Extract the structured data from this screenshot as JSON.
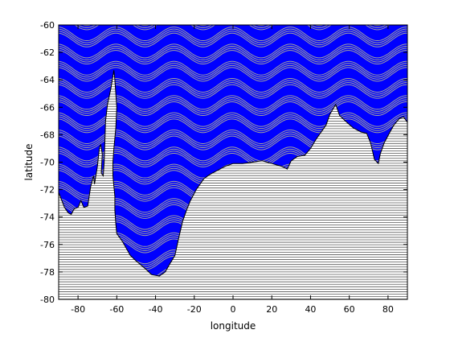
{
  "chart_data": {
    "type": "map",
    "title": "",
    "xlabel": "longitude",
    "ylabel": "latitude",
    "xlim": [
      -90,
      90
    ],
    "ylim": [
      -80,
      -60
    ],
    "xticks": [
      -80,
      -60,
      -40,
      -20,
      0,
      20,
      40,
      60,
      80
    ],
    "yticks": [
      -80,
      -78,
      -76,
      -74,
      -72,
      -70,
      -68,
      -66,
      -64,
      -62,
      -60
    ],
    "grid": false,
    "colors": {
      "ocean": "#0000ff",
      "land": "#ffffff",
      "stripe": "#a0a0a0",
      "coastline": "#000000"
    },
    "wave": {
      "period_deg_lon": 30,
      "amplitude_deg_lat": 0.5,
      "band_spacing_deg_lat": 1.25,
      "band_thickness_deg_lat": 0.45,
      "lines_per_band": 4
    },
    "land_stripe_spacing_deg_lat": 0.18,
    "coastline": [
      [
        -90,
        -72.2
      ],
      [
        -87,
        -73.3
      ],
      [
        -85,
        -73.7
      ],
      [
        -83.5,
        -73.8
      ],
      [
        -82,
        -73.4
      ],
      [
        -80,
        -73.3
      ],
      [
        -78.5,
        -72.8
      ],
      [
        -77,
        -73.3
      ],
      [
        -75,
        -73.2
      ],
      [
        -73.5,
        -71.8
      ],
      [
        -72,
        -71.0
      ],
      [
        -71.5,
        -71.6
      ],
      [
        -70,
        -70.3
      ],
      [
        -69,
        -69.0
      ],
      [
        -68.3,
        -68.7
      ],
      [
        -67.5,
        -69.4
      ],
      [
        -68,
        -70.8
      ],
      [
        -67,
        -71.0
      ],
      [
        -66.5,
        -70.0
      ],
      [
        -65.8,
        -67.0
      ],
      [
        -64.8,
        -65.8
      ],
      [
        -63,
        -64.6
      ],
      [
        -61.5,
        -63.3
      ],
      [
        -61,
        -64.0
      ],
      [
        -60,
        -66.0
      ],
      [
        -60.5,
        -67.5
      ],
      [
        -61.5,
        -69.0
      ],
      [
        -62,
        -70.0
      ],
      [
        -62,
        -71.0
      ],
      [
        -61,
        -72.5
      ],
      [
        -61,
        -73.5
      ],
      [
        -60.5,
        -74.5
      ],
      [
        -60,
        -75.2
      ],
      [
        -57,
        -75.8
      ],
      [
        -53,
        -76.8
      ],
      [
        -50,
        -77.2
      ],
      [
        -45,
        -77.8
      ],
      [
        -42,
        -78.2
      ],
      [
        -38,
        -78.3
      ],
      [
        -35,
        -78.0
      ],
      [
        -33,
        -77.5
      ],
      [
        -30,
        -76.8
      ],
      [
        -28,
        -75.5
      ],
      [
        -26,
        -74.3
      ],
      [
        -24,
        -73.5
      ],
      [
        -22,
        -72.8
      ],
      [
        -19,
        -72.0
      ],
      [
        -15,
        -71.2
      ],
      [
        -12,
        -70.9
      ],
      [
        -8,
        -70.6
      ],
      [
        -4,
        -70.3
      ],
      [
        0,
        -70.1
      ],
      [
        5,
        -70.1
      ],
      [
        10,
        -70.0
      ],
      [
        15,
        -69.9
      ],
      [
        20,
        -70.1
      ],
      [
        25,
        -70.3
      ],
      [
        28,
        -70.5
      ],
      [
        30,
        -69.9
      ],
      [
        33,
        -69.6
      ],
      [
        37,
        -69.5
      ],
      [
        40,
        -69.0
      ],
      [
        43,
        -68.3
      ],
      [
        46,
        -67.7
      ],
      [
        48,
        -67.3
      ],
      [
        50,
        -66.5
      ],
      [
        53,
        -65.8
      ],
      [
        55,
        -66.6
      ],
      [
        58,
        -67.0
      ],
      [
        62,
        -67.5
      ],
      [
        66,
        -67.8
      ],
      [
        69,
        -67.9
      ],
      [
        71,
        -68.6
      ],
      [
        73,
        -69.8
      ],
      [
        75,
        -70.1
      ],
      [
        76,
        -69.4
      ],
      [
        78,
        -68.6
      ],
      [
        81,
        -67.8
      ],
      [
        83,
        -67.3
      ],
      [
        86,
        -66.8
      ],
      [
        88,
        -66.7
      ],
      [
        90,
        -67.1
      ]
    ]
  }
}
